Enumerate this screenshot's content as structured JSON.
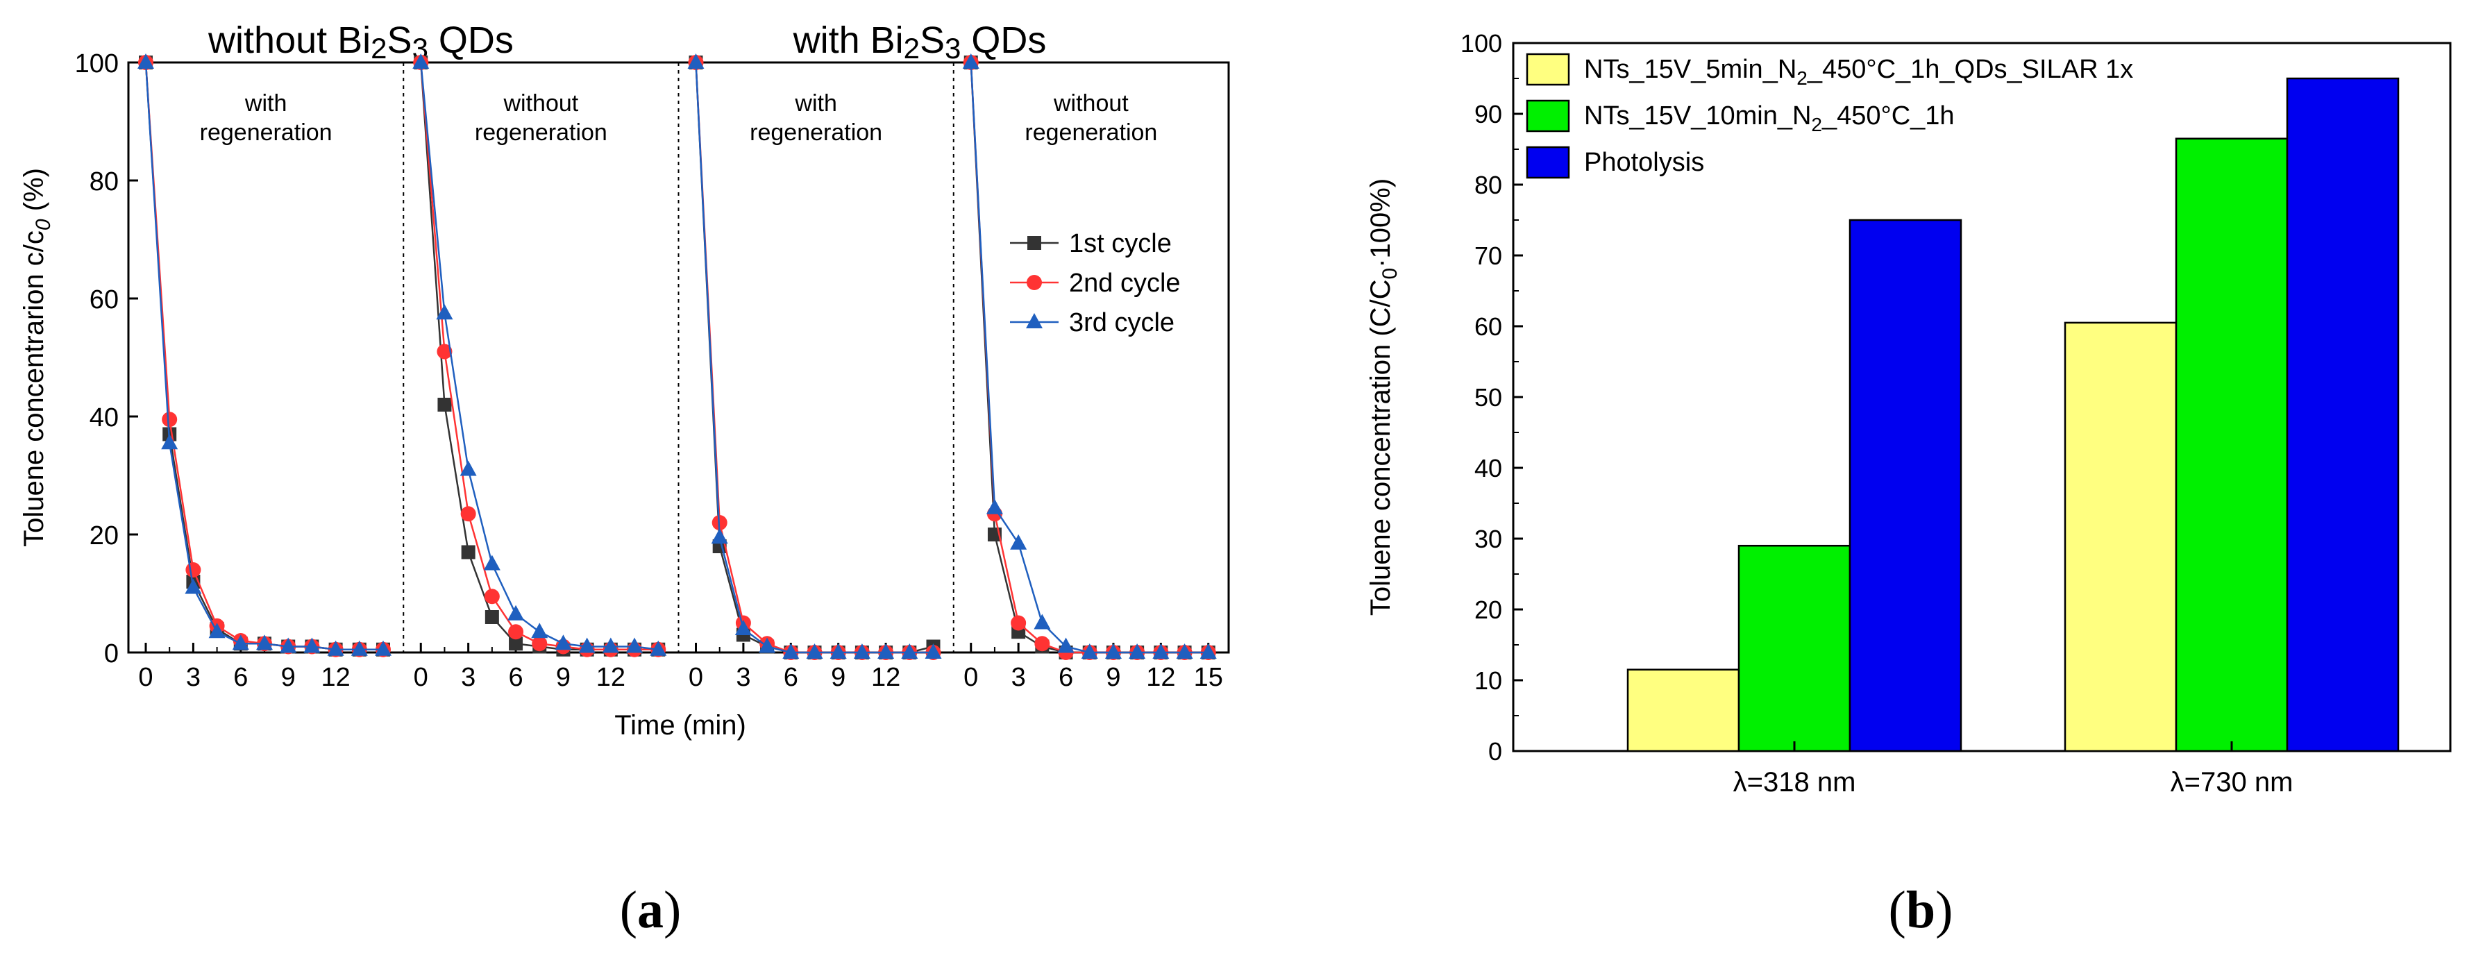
{
  "chart_data": [
    {
      "panel": "(a)",
      "panel_label": {
        "open": "(",
        "letter": "a",
        "close": ")"
      },
      "type": "line",
      "title_left": "without Bi2S3 QDs",
      "title_right": "with Bi2S3 QDs",
      "title_parts": {
        "without": "without Bi",
        "with": "with Bi",
        "two": "2",
        "s": "S",
        "three": "3",
        "qds": " QDs"
      },
      "xlabel": "Time (min)",
      "ylabel": "Toluene concentrarion c/c0 (%)",
      "ylabel_parts": {
        "main": "Toluene concentrarion c/c",
        "sub": "0",
        "tail": " (%)"
      },
      "ylim": [
        0,
        100
      ],
      "yticks": [
        0,
        20,
        40,
        60,
        80,
        100
      ],
      "xticks_per_segment": [
        [
          "0",
          "3",
          "6",
          "9",
          "12"
        ],
        [
          "0",
          "3",
          "6",
          "9",
          "12"
        ],
        [
          "0",
          "3",
          "6",
          "9",
          "12"
        ],
        [
          "0",
          "3",
          "6",
          "9",
          "12",
          "15"
        ]
      ],
      "segments": [
        {
          "label_line1": "with",
          "label_line2": "regeneration"
        },
        {
          "label_line1": "without",
          "label_line2": "regeneration"
        },
        {
          "label_line1": "with",
          "label_line2": "regeneration"
        },
        {
          "label_line1": "without",
          "label_line2": "regeneration"
        }
      ],
      "legend": [
        "1st cycle",
        "2nd cycle",
        "3rd cycle"
      ],
      "t": [
        0,
        1.5,
        3,
        4.5,
        6,
        7.5,
        9,
        10.5,
        12,
        13.5,
        15
      ],
      "series": [
        {
          "name": "1st cycle",
          "color": "#333333",
          "marker": "square",
          "segments": [
            [
              100,
              37,
              12,
              4,
              1.5,
              1.5,
              1,
              1,
              0.5,
              0.5,
              0.5
            ],
            [
              100,
              42,
              17,
              6,
              1.5,
              1,
              0.5,
              0.5,
              0.5,
              0.5,
              0.5
            ],
            [
              100,
              18,
              3,
              1,
              0,
              0,
              0,
              0,
              0,
              0,
              1
            ],
            [
              100,
              20,
              3.5,
              1,
              0,
              0,
              0,
              0,
              0,
              0,
              0
            ]
          ]
        },
        {
          "name": "2nd cycle",
          "color": "#ff3333",
          "marker": "circle",
          "segments": [
            [
              100,
              39.5,
              14,
              4.5,
              2,
              1.5,
              1,
              1,
              0.5,
              0.5,
              0.5
            ],
            [
              100,
              51,
              23.5,
              9.5,
              3.5,
              1.5,
              1,
              0.5,
              0.5,
              0.5,
              0.5
            ],
            [
              100,
              22,
              5,
              1.5,
              0,
              0,
              0,
              0,
              0,
              0,
              0
            ],
            [
              100,
              23.5,
              5,
              1.5,
              0,
              0,
              0,
              0,
              0,
              0,
              0
            ]
          ]
        },
        {
          "name": "3rd cycle",
          "color": "#1f5fbf",
          "marker": "triangle",
          "segments": [
            [
              100,
              35.5,
              11,
              3.5,
              1.5,
              1.5,
              1,
              1,
              0.5,
              0.5,
              0.5
            ],
            [
              100,
              57.5,
              31,
              15,
              6.5,
              3.5,
              1.5,
              1,
              1,
              1,
              0.5
            ],
            [
              100,
              19.5,
              4,
              1,
              0,
              0,
              0,
              0,
              0,
              0,
              0
            ],
            [
              100,
              24.5,
              18.5,
              5,
              1,
              0,
              0,
              0,
              0,
              0,
              0
            ]
          ]
        }
      ]
    },
    {
      "panel": "(b)",
      "panel_label": {
        "open": "(",
        "letter": "b",
        "close": ")"
      },
      "type": "bar",
      "ylabel": "Toluene concentration (C/C0·100%)",
      "ylabel_parts": {
        "main": "Toluene concentration (C/C",
        "sub": "0",
        "tail": "·100%)"
      },
      "ylim": [
        0,
        100
      ],
      "yticks": [
        0,
        10,
        20,
        30,
        40,
        50,
        60,
        70,
        80,
        90,
        100
      ],
      "categories": [
        "λ=318 nm",
        "λ=730 nm"
      ],
      "series": [
        {
          "name": "NTs_15V_5min_N2_450°C_1h_QDs_SILAR 1x",
          "label_parts": {
            "pre": "NTs_15V_5min_N",
            "sub": "2",
            "post": "_450°C_1h_QDs_SILAR 1x"
          },
          "color": "#ffff80",
          "values": [
            11.5,
            60.5
          ]
        },
        {
          "name": "NTs_15V_10min_N2_450°C_1h",
          "label_parts": {
            "pre": "NTs_15V_10min_N",
            "sub": "2",
            "post": "_450°C_1h"
          },
          "color": "#00f000",
          "values": [
            29,
            86.5
          ]
        },
        {
          "name": "Photolysis",
          "label_parts": {
            "pre": "Photolysis",
            "sub": "",
            "post": ""
          },
          "color": "#0000f0",
          "values": [
            75,
            95
          ]
        }
      ]
    }
  ]
}
